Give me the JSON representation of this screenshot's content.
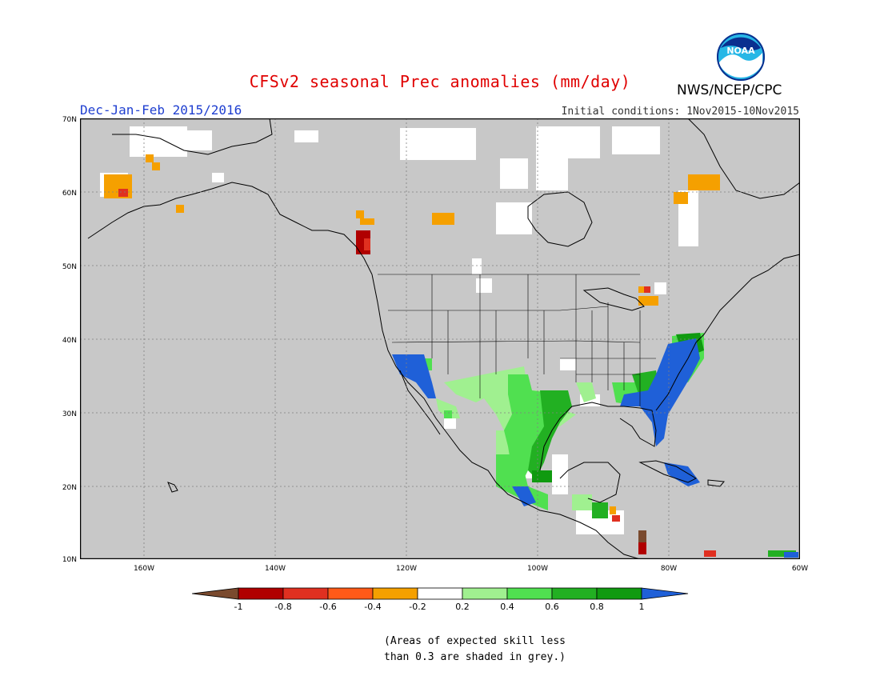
{
  "title": "CFSv2 seasonal Prec anomalies (mm/day)",
  "subtitle_left": "Dec-Jan-Feb 2015/2016",
  "subtitle_right": "Initial conditions: 1Nov2015-10Nov2015",
  "agency": "NWS/NCEP/CPC",
  "logo_text": "NOAA",
  "lat_labels": [
    "70N",
    "60N",
    "50N",
    "40N",
    "30N",
    "20N",
    "10N"
  ],
  "lon_labels": [
    "160W",
    "140W",
    "120W",
    "100W",
    "80W",
    "60W"
  ],
  "colorbar": {
    "labels": [
      "-1",
      "-0.8",
      "-0.6",
      "-0.4",
      "-0.2",
      "0.2",
      "0.4",
      "0.6",
      "0.8",
      "1"
    ],
    "colors": [
      "#7a4a2e",
      "#b00000",
      "#e03020",
      "#ff5a18",
      "#f5a000",
      "#ffffff",
      "#a0f090",
      "#50e050",
      "#22b022",
      "#109a10",
      "#1f60d8"
    ]
  },
  "footnote_line1": "(Areas of expected skill less",
  "footnote_line2": "than 0.3 are shaded in grey.)",
  "colors": {
    "grey_mask": "#c8c8c8",
    "title": "#e00000",
    "subtitle": "#1f3fd0"
  }
}
